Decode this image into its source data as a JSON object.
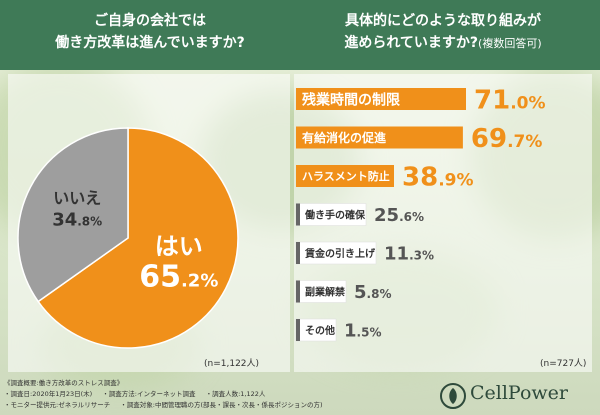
{
  "header": {
    "left_line1": "ご自身の会社では",
    "left_line2": "働き方改革は進んでいますか?",
    "right_line1": "具体的にどのような取り組みが",
    "right_line2": "進められていますか?",
    "right_note": "(複数回答可)"
  },
  "chart_data": [
    {
      "type": "pie",
      "slices": [
        {
          "label": "はい",
          "value": 65.2,
          "display_int": "65",
          "display_dec": ".2%",
          "color": "#f0901a"
        },
        {
          "label": "いいえ",
          "value": 34.8,
          "display_int": "34",
          "display_dec": ".8%",
          "color": "#9e9e9e"
        }
      ],
      "n_label": "(n=1,122人)"
    },
    {
      "type": "bar",
      "orientation": "horizontal",
      "categories": [
        "残業時間の制限",
        "有給消化の促進",
        "ハラスメント防止",
        "働き手の確保",
        "賃金の引き上げ",
        "副業解禁",
        "その他"
      ],
      "values": [
        71.0,
        69.7,
        38.9,
        25.6,
        11.3,
        5.8,
        1.5
      ],
      "value_labels": [
        {
          "int": "71",
          "dec": ".0%"
        },
        {
          "int": "69",
          "dec": ".7%"
        },
        {
          "int": "38",
          "dec": ".9%"
        },
        {
          "int": "25",
          "dec": ".6%"
        },
        {
          "int": "11",
          "dec": ".3%"
        },
        {
          "int": "5",
          "dec": ".8%"
        },
        {
          "int": "1",
          "dec": ".5%"
        }
      ],
      "colors": {
        "highlight": "#f0901a",
        "muted": "#666666"
      },
      "highlight_count": 3,
      "n_label": "(n=727人)"
    }
  ],
  "footer": {
    "title": "《調査概要:働き方改革のストレス調査》",
    "row1": [
      "・調査日:2020年1月23日(木)",
      "・調査方法:インターネット調査",
      "・調査人数:1,122人"
    ],
    "row2": [
      "・モニター提供元:ゼネラルリサーチ",
      "・調査対象:中間管理職の方(部長・課長・次長・係長ポジションの方)"
    ]
  },
  "logo": {
    "text": "CellPower"
  }
}
